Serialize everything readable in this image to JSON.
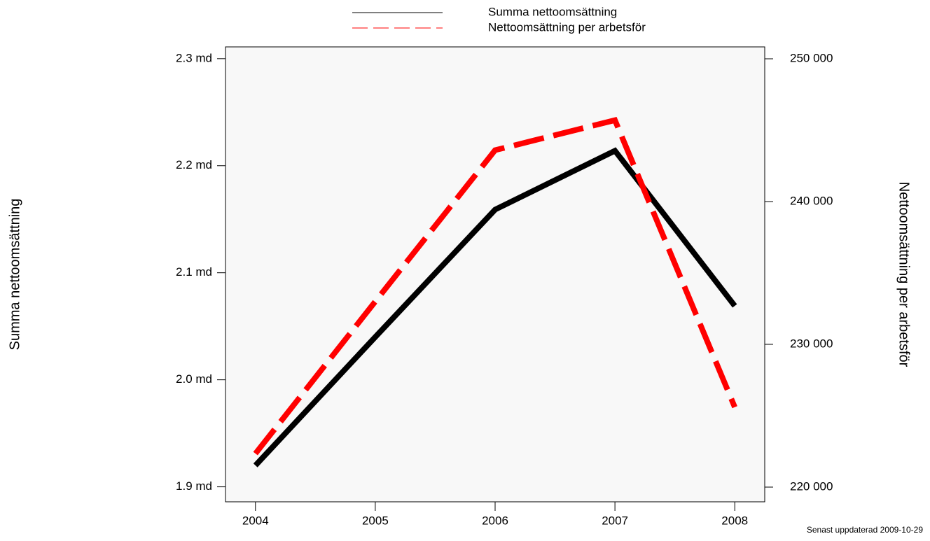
{
  "chart_data": {
    "type": "line",
    "x": [
      2004,
      2005,
      2006,
      2007,
      2008
    ],
    "xlim": [
      2003.75,
      2008.25
    ],
    "xticks": [
      2004,
      2005,
      2006,
      2007,
      2008
    ],
    "ylabel": "Summa nettoomsättning",
    "y2label": "Nettoomsättning per arbetsför",
    "ylim": [
      1.886,
      2.311
    ],
    "yticks": [
      {
        "value": 1.9,
        "label": "1.9 md"
      },
      {
        "value": 2.0,
        "label": "2.0 md"
      },
      {
        "value": 2.1,
        "label": "2.1 md"
      },
      {
        "value": 2.2,
        "label": "2.2 md"
      },
      {
        "value": 2.3,
        "label": "2.3 md"
      }
    ],
    "y2lim": [
      218971,
      250833
    ],
    "y2ticks": [
      {
        "value": 220000,
        "label": "220 000"
      },
      {
        "value": 230000,
        "label": "230 000"
      },
      {
        "value": 240000,
        "label": "240 000"
      },
      {
        "value": 250000,
        "label": "250 000"
      }
    ],
    "series": [
      {
        "name": "Summa nettoomsättning",
        "color": "#000000",
        "values": [
          1.92,
          2.04,
          2.159,
          2.214,
          2.069
        ]
      },
      {
        "name": "Nettoomsättning per arbetsför",
        "color": "#ff0000",
        "axis": "y2",
        "dashed": true,
        "values": [
          222350,
          233000,
          243600,
          245700,
          225600
        ]
      }
    ],
    "footnote": "Senast uppdaterad 2009-10-29"
  }
}
